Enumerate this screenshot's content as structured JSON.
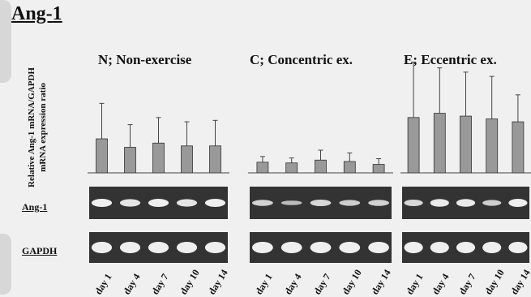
{
  "page_title": "Ang-1",
  "y_axis_label": [
    "Relative Ang-1 mRNA/GAPDH",
    "mRNA expression ratio"
  ],
  "row_labels": {
    "ang1": "Ang-1",
    "gapdh": "GAPDH"
  },
  "colors": {
    "bar": "#999999",
    "gel": "#333333",
    "band": "#efefef",
    "axis": "#444444"
  },
  "chart_data": [
    {
      "type": "bar",
      "title": "N; Non-exercise",
      "categories": [
        "day 1",
        "day 4",
        "day 7",
        "day 10",
        "day 14"
      ],
      "values": [
        0.48,
        0.36,
        0.42,
        0.38,
        0.38
      ],
      "errors": [
        0.5,
        0.32,
        0.36,
        0.34,
        0.36
      ],
      "ylim": [
        0,
        1.35
      ]
    },
    {
      "type": "bar",
      "title": "C; Concentric ex.",
      "categories": [
        "day 1",
        "day 4",
        "day 7",
        "day 10",
        "day 14"
      ],
      "values": [
        0.15,
        0.14,
        0.18,
        0.16,
        0.12
      ],
      "errors": [
        0.08,
        0.07,
        0.14,
        0.12,
        0.08
      ],
      "ylim": [
        0,
        1.35
      ]
    },
    {
      "type": "bar",
      "title": "E; Eccentric ex.",
      "categories": [
        "day 1",
        "day 4",
        "day 7",
        "day 10",
        "day 14"
      ],
      "values": [
        0.78,
        0.84,
        0.8,
        0.76,
        0.72
      ],
      "errors": [
        0.78,
        0.64,
        0.62,
        0.6,
        0.38
      ],
      "ylim": [
        0,
        1.35
      ]
    }
  ]
}
